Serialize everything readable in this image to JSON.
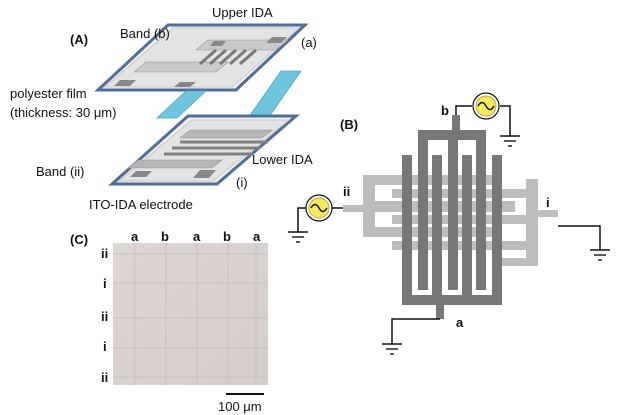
{
  "panelA": {
    "tag": "(A)",
    "upper_ida": "Upper IDA",
    "band_b": "Band (b)",
    "band_a": "(a)",
    "polyester_film": "polyester film",
    "thickness": "(thickness: 30 μm)",
    "lower_ida": "Lower IDA",
    "band_ii": "Band (ii)",
    "band_i": "(i)",
    "electrode": "ITO-IDA electrode"
  },
  "panelB": {
    "tag": "(B)",
    "label_b": "b",
    "label_ii": "ii",
    "label_i": "i",
    "label_a": "a"
  },
  "panelC": {
    "tag": "(C)",
    "col_labels": [
      "a",
      "b",
      "a",
      "b",
      "a"
    ],
    "row_labels": [
      "ii",
      "i",
      "ii",
      "i",
      "ii"
    ],
    "scale_bar": "100 μm"
  },
  "colors": {
    "film_blue": "#6fc4de",
    "frame_blue": "#4f6f98",
    "dark_electrode": "#777777",
    "light_electrode": "#bdbdbd",
    "micrograph": "#d9d3d1"
  }
}
